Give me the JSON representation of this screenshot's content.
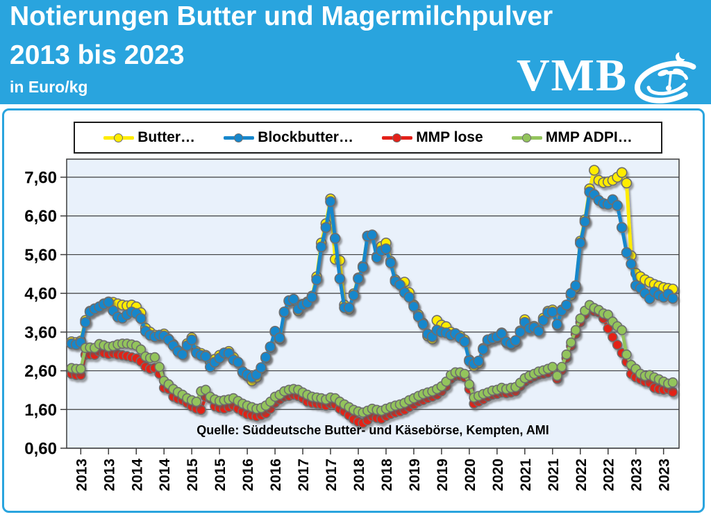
{
  "header": {
    "title_line1": "Notierungen Butter und Magermilchpulver",
    "title_line2": "2013 bis 2023",
    "subtitle": "in Euro/kg",
    "logo_text": "VMB",
    "background": "#29A4DE"
  },
  "legend": {
    "items": [
      {
        "label": "Butter…",
        "color": "#FFEC00"
      },
      {
        "label": "Blockbutter…",
        "color": "#1787CC"
      },
      {
        "label": "MMP lose",
        "color": "#E32119"
      },
      {
        "label": "MMP ADPI…",
        "color": "#93C45C"
      }
    ]
  },
  "source_note": "Quelle: Süddeutsche Butter- und Käsebörse, Kempten, AMI",
  "chart_data": {
    "type": "line",
    "title": "Notierungen Butter und Magermilchpulver 2013 bis 2023",
    "ylabel": "Euro/kg",
    "xlabel": "",
    "time_range": "monthly, Jan 2013 – Nov 2023",
    "grid": true,
    "legend_position": "top",
    "plot_bg": "#E9F1FB",
    "grid_color": "#3C3C3C",
    "ylim": [
      0.6,
      8.05
    ],
    "y_ticks": [
      0.6,
      1.6,
      2.6,
      3.6,
      4.6,
      5.6,
      6.6,
      7.6
    ],
    "y_tick_labels": [
      "0,60",
      "1,60",
      "2,60",
      "3,60",
      "4,60",
      "5,60",
      "6,60",
      "7,60"
    ],
    "x_tick_labels": [
      "2013",
      "2013",
      "2014",
      "2014",
      "2015",
      "2015",
      "2016",
      "2016",
      "2017",
      "2017",
      "2018",
      "2018",
      "2019",
      "2019",
      "2020",
      "2020",
      "2021",
      "2021",
      "2022",
      "2022",
      "2023",
      "2023"
    ],
    "x_tick_month_indices": [
      2,
      8,
      14,
      20,
      26,
      32,
      38,
      44,
      50,
      56,
      62,
      68,
      74,
      80,
      86,
      92,
      98,
      104,
      110,
      116,
      122,
      128
    ],
    "series": [
      {
        "name": "Butter…",
        "color": "#FFEC00",
        "marker_stroke": "#6E6E6E",
        "values": [
          3.35,
          3.33,
          3.37,
          3.9,
          4.14,
          4.2,
          4.25,
          4.33,
          4.38,
          4.37,
          4.33,
          4.3,
          4.28,
          4.3,
          4.25,
          4.1,
          3.7,
          3.6,
          3.52,
          3.5,
          3.55,
          3.42,
          3.28,
          3.12,
          3.06,
          3.3,
          3.45,
          3.1,
          3.05,
          3.0,
          2.82,
          2.9,
          3.0,
          3.05,
          3.1,
          2.95,
          2.82,
          2.56,
          2.47,
          2.34,
          2.43,
          2.65,
          2.93,
          3.2,
          3.6,
          3.42,
          4.1,
          4.4,
          4.42,
          4.15,
          4.32,
          4.38,
          4.53,
          5.03,
          5.9,
          6.4,
          7.04,
          5.48,
          5.45,
          4.3,
          4.19,
          4.59,
          5.0,
          5.3,
          6.08,
          6.1,
          5.55,
          5.81,
          5.9,
          5.43,
          4.95,
          4.85,
          4.89,
          4.62,
          4.3,
          4.05,
          3.83,
          3.5,
          3.42,
          3.9,
          3.78,
          3.74,
          3.6,
          3.56,
          3.5,
          3.4,
          2.88,
          2.72,
          2.8,
          3.18,
          3.38,
          3.42,
          3.46,
          3.58,
          3.33,
          3.28,
          3.35,
          3.63,
          3.92,
          3.69,
          3.75,
          3.65,
          3.96,
          4.14,
          4.17,
          3.78,
          4.17,
          4.28,
          4.55,
          4.75,
          5.95,
          6.5,
          7.3,
          7.78,
          7.52,
          7.46,
          7.48,
          7.52,
          7.6,
          7.72,
          7.45,
          5.57,
          5.12,
          5.03,
          4.95,
          4.89,
          4.83,
          4.79,
          4.75,
          4.73,
          4.71
        ]
      },
      {
        "name": "Blockbutter…",
        "color": "#1787CC",
        "marker_stroke": "#6E6E6E",
        "values": [
          3.3,
          3.28,
          3.33,
          3.85,
          4.12,
          4.2,
          4.25,
          4.32,
          4.37,
          4.15,
          3.99,
          3.96,
          4.05,
          4.12,
          4.08,
          3.95,
          3.62,
          3.52,
          3.48,
          3.52,
          3.5,
          3.4,
          3.25,
          3.1,
          3.02,
          3.25,
          3.4,
          3.06,
          3.0,
          2.97,
          2.7,
          2.82,
          2.93,
          3.06,
          3.05,
          2.88,
          2.82,
          2.58,
          2.5,
          2.43,
          2.5,
          2.68,
          2.95,
          3.22,
          3.62,
          3.45,
          4.12,
          4.41,
          4.45,
          4.19,
          4.3,
          4.35,
          4.5,
          4.95,
          5.8,
          6.3,
          6.97,
          6.02,
          4.98,
          4.23,
          4.23,
          4.55,
          4.98,
          5.27,
          6.08,
          6.11,
          5.52,
          5.7,
          5.75,
          5.39,
          4.91,
          4.82,
          4.62,
          4.5,
          4.26,
          4.0,
          3.8,
          3.55,
          3.48,
          3.65,
          3.6,
          3.58,
          3.52,
          3.56,
          3.45,
          3.35,
          2.85,
          2.78,
          2.85,
          3.15,
          3.4,
          3.44,
          3.48,
          3.56,
          3.35,
          3.3,
          3.38,
          3.6,
          3.85,
          3.69,
          3.72,
          3.62,
          3.9,
          4.1,
          4.12,
          3.8,
          4.15,
          4.3,
          4.6,
          4.8,
          5.9,
          6.45,
          7.22,
          7.15,
          7.0,
          6.92,
          6.9,
          7.02,
          6.87,
          6.3,
          5.65,
          5.36,
          4.8,
          4.73,
          4.6,
          4.46,
          4.64,
          4.55,
          4.5,
          4.58,
          4.47
        ]
      },
      {
        "name": "MMP lose",
        "color": "#E32119",
        "marker_stroke": "#6E6E6E",
        "values": [
          2.52,
          2.49,
          2.49,
          3.01,
          3.02,
          3.01,
          3.1,
          3.06,
          3.03,
          3.05,
          3.02,
          3.0,
          2.98,
          2.95,
          2.92,
          2.84,
          2.7,
          2.65,
          2.67,
          2.52,
          2.16,
          2.13,
          1.93,
          1.88,
          1.84,
          1.77,
          1.68,
          1.62,
          1.59,
          1.93,
          1.89,
          1.68,
          1.64,
          1.62,
          1.66,
          1.7,
          1.62,
          1.55,
          1.48,
          1.45,
          1.42,
          1.45,
          1.5,
          1.62,
          1.77,
          1.86,
          1.93,
          1.95,
          1.98,
          1.95,
          1.89,
          1.8,
          1.77,
          1.75,
          1.73,
          1.7,
          1.75,
          1.73,
          1.62,
          1.55,
          1.45,
          1.35,
          1.28,
          1.25,
          1.32,
          1.42,
          1.38,
          1.36,
          1.43,
          1.48,
          1.52,
          1.55,
          1.59,
          1.66,
          1.73,
          1.8,
          1.84,
          1.89,
          1.93,
          1.98,
          2.07,
          2.2,
          2.39,
          2.47,
          2.47,
          2.43,
          2.13,
          1.75,
          1.8,
          1.86,
          1.93,
          1.98,
          2.0,
          2.04,
          2.02,
          2.04,
          2.07,
          2.2,
          2.32,
          2.39,
          2.45,
          2.5,
          2.52,
          2.55,
          2.61,
          2.39,
          2.61,
          2.93,
          3.24,
          3.55,
          3.85,
          4.05,
          4.25,
          4.14,
          4.11,
          3.95,
          3.69,
          3.47,
          3.27,
          3.06,
          2.83,
          2.52,
          2.43,
          2.38,
          2.32,
          2.29,
          2.16,
          2.13,
          2.11,
          2.13,
          2.05
        ]
      },
      {
        "name": "MMP ADPI…",
        "color": "#93C45C",
        "marker_stroke": "#6E6E6E",
        "values": [
          2.67,
          2.65,
          2.65,
          3.19,
          3.2,
          3.19,
          3.29,
          3.26,
          3.22,
          3.24,
          3.28,
          3.3,
          3.3,
          3.28,
          3.25,
          3.15,
          2.97,
          2.93,
          2.95,
          2.7,
          2.34,
          2.25,
          2.13,
          2.05,
          1.98,
          1.89,
          1.84,
          1.8,
          2.07,
          2.11,
          1.93,
          1.86,
          1.82,
          1.84,
          1.86,
          1.89,
          1.82,
          1.75,
          1.7,
          1.66,
          1.62,
          1.64,
          1.7,
          1.8,
          1.93,
          1.98,
          2.07,
          2.11,
          2.13,
          2.11,
          2.04,
          1.98,
          1.93,
          1.91,
          1.89,
          1.86,
          1.91,
          1.89,
          1.8,
          1.73,
          1.66,
          1.59,
          1.55,
          1.52,
          1.57,
          1.62,
          1.59,
          1.57,
          1.62,
          1.66,
          1.7,
          1.73,
          1.77,
          1.84,
          1.89,
          1.95,
          2.0,
          2.04,
          2.07,
          2.13,
          2.2,
          2.32,
          2.49,
          2.56,
          2.56,
          2.52,
          2.25,
          1.91,
          1.95,
          2.0,
          2.04,
          2.09,
          2.11,
          2.16,
          2.13,
          2.16,
          2.18,
          2.29,
          2.41,
          2.47,
          2.52,
          2.58,
          2.61,
          2.65,
          2.7,
          2.47,
          2.7,
          3.02,
          3.33,
          3.65,
          3.95,
          4.15,
          4.3,
          4.22,
          4.17,
          4.08,
          4.05,
          3.87,
          3.75,
          3.65,
          3.02,
          2.75,
          2.65,
          2.52,
          2.47,
          2.49,
          2.43,
          2.38,
          2.32,
          2.27,
          2.3
        ]
      }
    ]
  }
}
